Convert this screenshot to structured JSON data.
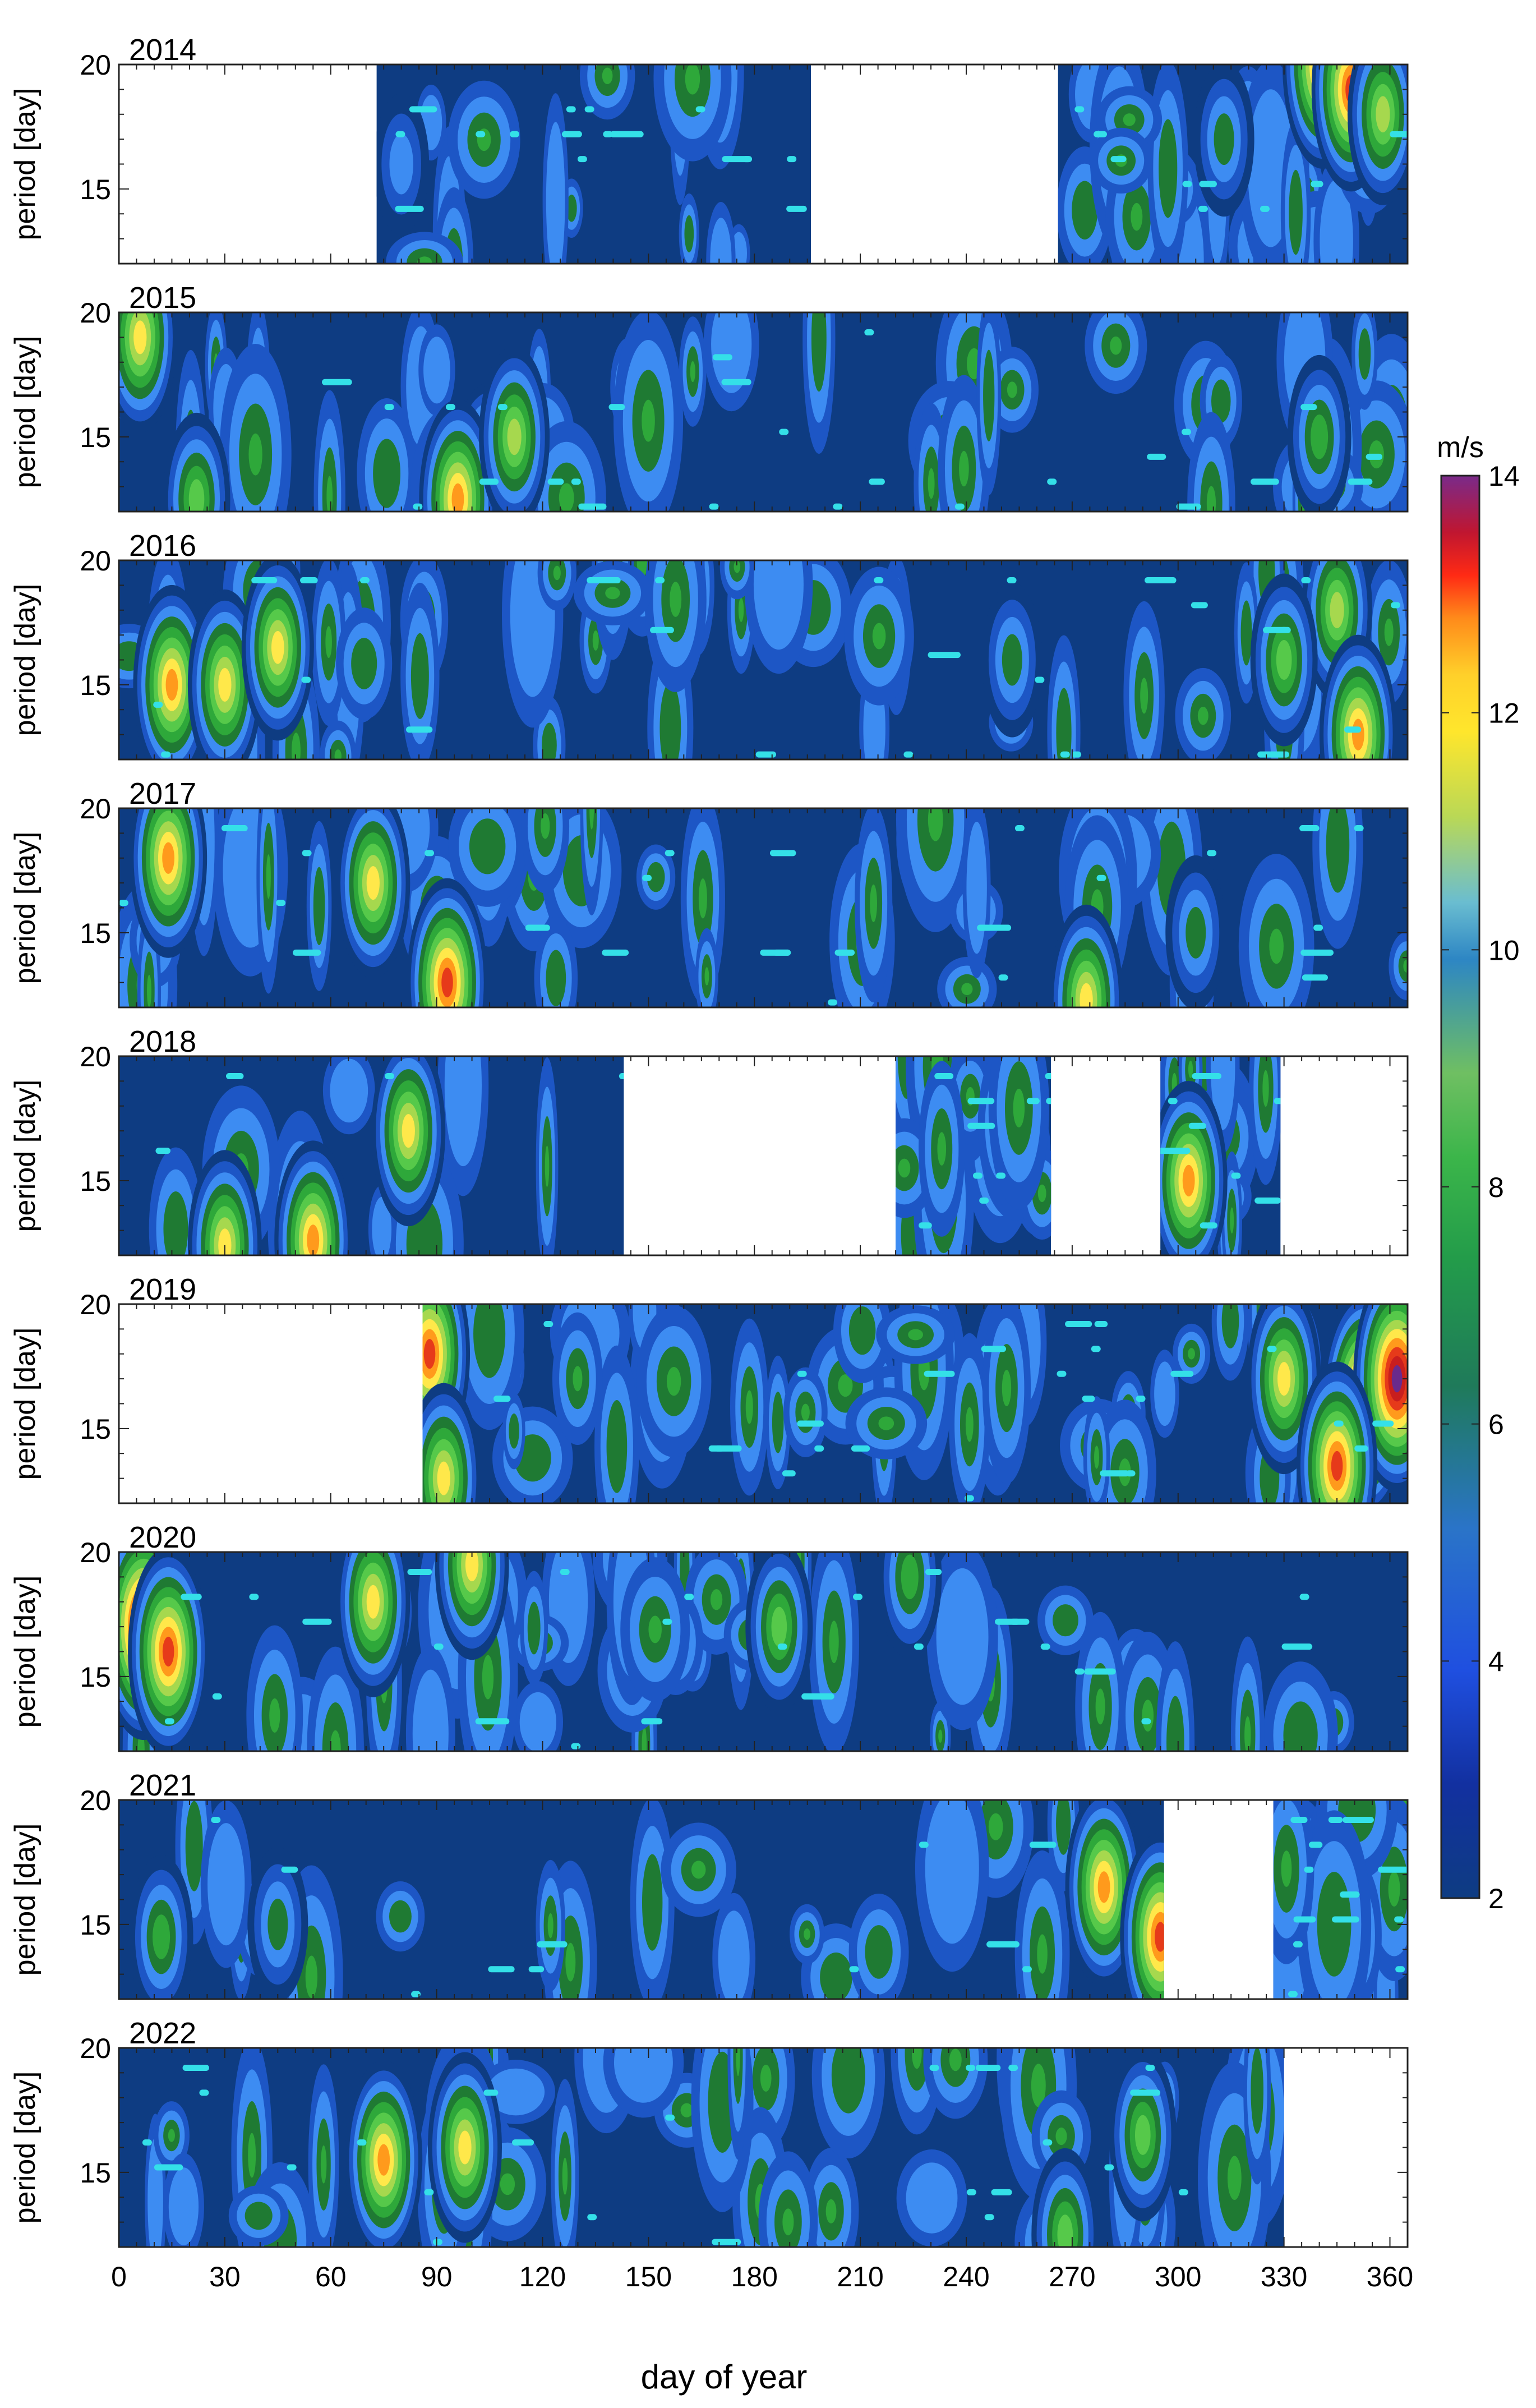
{
  "chart_data": {
    "type": "heatmap",
    "title": "",
    "xlabel": "day of year",
    "ylabel": "period [day]",
    "xlim": [
      0,
      365
    ],
    "ylim": [
      12,
      20
    ],
    "x_ticks": [
      0,
      30,
      60,
      90,
      120,
      150,
      180,
      210,
      240,
      270,
      300,
      330,
      360
    ],
    "y_ticks": [
      15,
      20
    ],
    "colorbar": {
      "label": "m/s",
      "range": [
        2,
        14
      ],
      "ticks": [
        2,
        4,
        6,
        8,
        10,
        12,
        14
      ]
    },
    "panels": [
      {
        "year": "2014",
        "data_segments": [
          [
            73,
            196
          ],
          [
            266,
            365
          ]
        ],
        "hotspots": [
          [
            80,
            16,
            4.5
          ],
          [
            341,
            20,
            12
          ],
          [
            349,
            19,
            11.5
          ],
          [
            358,
            18,
            9
          ],
          [
            313,
            17,
            6
          ]
        ]
      },
      {
        "year": "2015",
        "data_segments": [
          [
            0,
            365
          ]
        ],
        "hotspots": [
          [
            6,
            19,
            10
          ],
          [
            105,
            13,
            12
          ],
          [
            96,
            12.5,
            11
          ],
          [
            112,
            15,
            9
          ],
          [
            22,
            12.5,
            8
          ],
          [
            340,
            15,
            7
          ]
        ]
      },
      {
        "year": "2016",
        "data_segments": [
          [
            0,
            365
          ]
        ],
        "hotspots": [
          [
            15,
            15,
            11
          ],
          [
            30,
            15,
            10
          ],
          [
            45,
            16.5,
            9.5
          ],
          [
            345,
            18,
            9
          ],
          [
            330,
            16,
            8
          ],
          [
            351,
            13,
            11
          ],
          [
            253,
            16,
            6
          ]
        ]
      },
      {
        "year": "2017",
        "data_segments": [
          [
            0,
            365
          ]
        ],
        "hotspots": [
          [
            14,
            18,
            11
          ],
          [
            72,
            17,
            10
          ],
          [
            93,
            13,
            12
          ],
          [
            274,
            12.3,
            10
          ],
          [
            305,
            15,
            6
          ]
        ]
      },
      {
        "year": "2018",
        "data_segments": [
          [
            0,
            143
          ],
          [
            220,
            264
          ],
          [
            295,
            329
          ]
        ],
        "hotspots": [
          [
            30,
            12.4,
            10
          ],
          [
            55,
            12.6,
            11
          ],
          [
            82,
            17,
            10
          ],
          [
            303,
            15,
            11
          ]
        ]
      },
      {
        "year": "2019",
        "data_segments": [
          [
            86,
            365
          ]
        ],
        "hotspots": [
          [
            88,
            18,
            12
          ],
          [
            92,
            13,
            10
          ],
          [
            330,
            17,
            10
          ],
          [
            353,
            16,
            14
          ],
          [
            362,
            17,
            14
          ],
          [
            345,
            13.5,
            12
          ]
        ]
      },
      {
        "year": "2020",
        "data_segments": [
          [
            0,
            365
          ]
        ],
        "hotspots": [
          [
            7,
            17,
            14
          ],
          [
            14,
            16,
            12
          ],
          [
            72,
            18,
            10
          ],
          [
            100,
            19.5,
            10
          ],
          [
            187,
            17,
            8
          ],
          [
            224,
            19,
            7
          ]
        ]
      },
      {
        "year": "2021",
        "data_segments": [
          [
            0,
            296
          ],
          [
            327,
            365
          ]
        ],
        "hotspots": [
          [
            279,
            16.5,
            11
          ],
          [
            12,
            14.5,
            7
          ],
          [
            295,
            14.5,
            12
          ],
          [
            45,
            15,
            6
          ]
        ]
      },
      {
        "year": "2022",
        "data_segments": [
          [
            0,
            330
          ]
        ],
        "hotspots": [
          [
            75,
            15.5,
            11
          ],
          [
            98,
            16,
            10
          ],
          [
            268,
            12.5,
            8
          ],
          [
            290,
            16.5,
            8
          ]
        ]
      }
    ]
  },
  "colors": {
    "colormap": [
      "#0e3c82",
      "#1d56c5",
      "#3d8cf2",
      "#1f7a33",
      "#2ea83a",
      "#56c94a",
      "#a6d84e",
      "#ffe84a",
      "#ff9a1c",
      "#e63a1a",
      "#c81e1e",
      "#6a2a8c"
    ],
    "marker": "#34e0e8",
    "background": "#ffffff"
  }
}
